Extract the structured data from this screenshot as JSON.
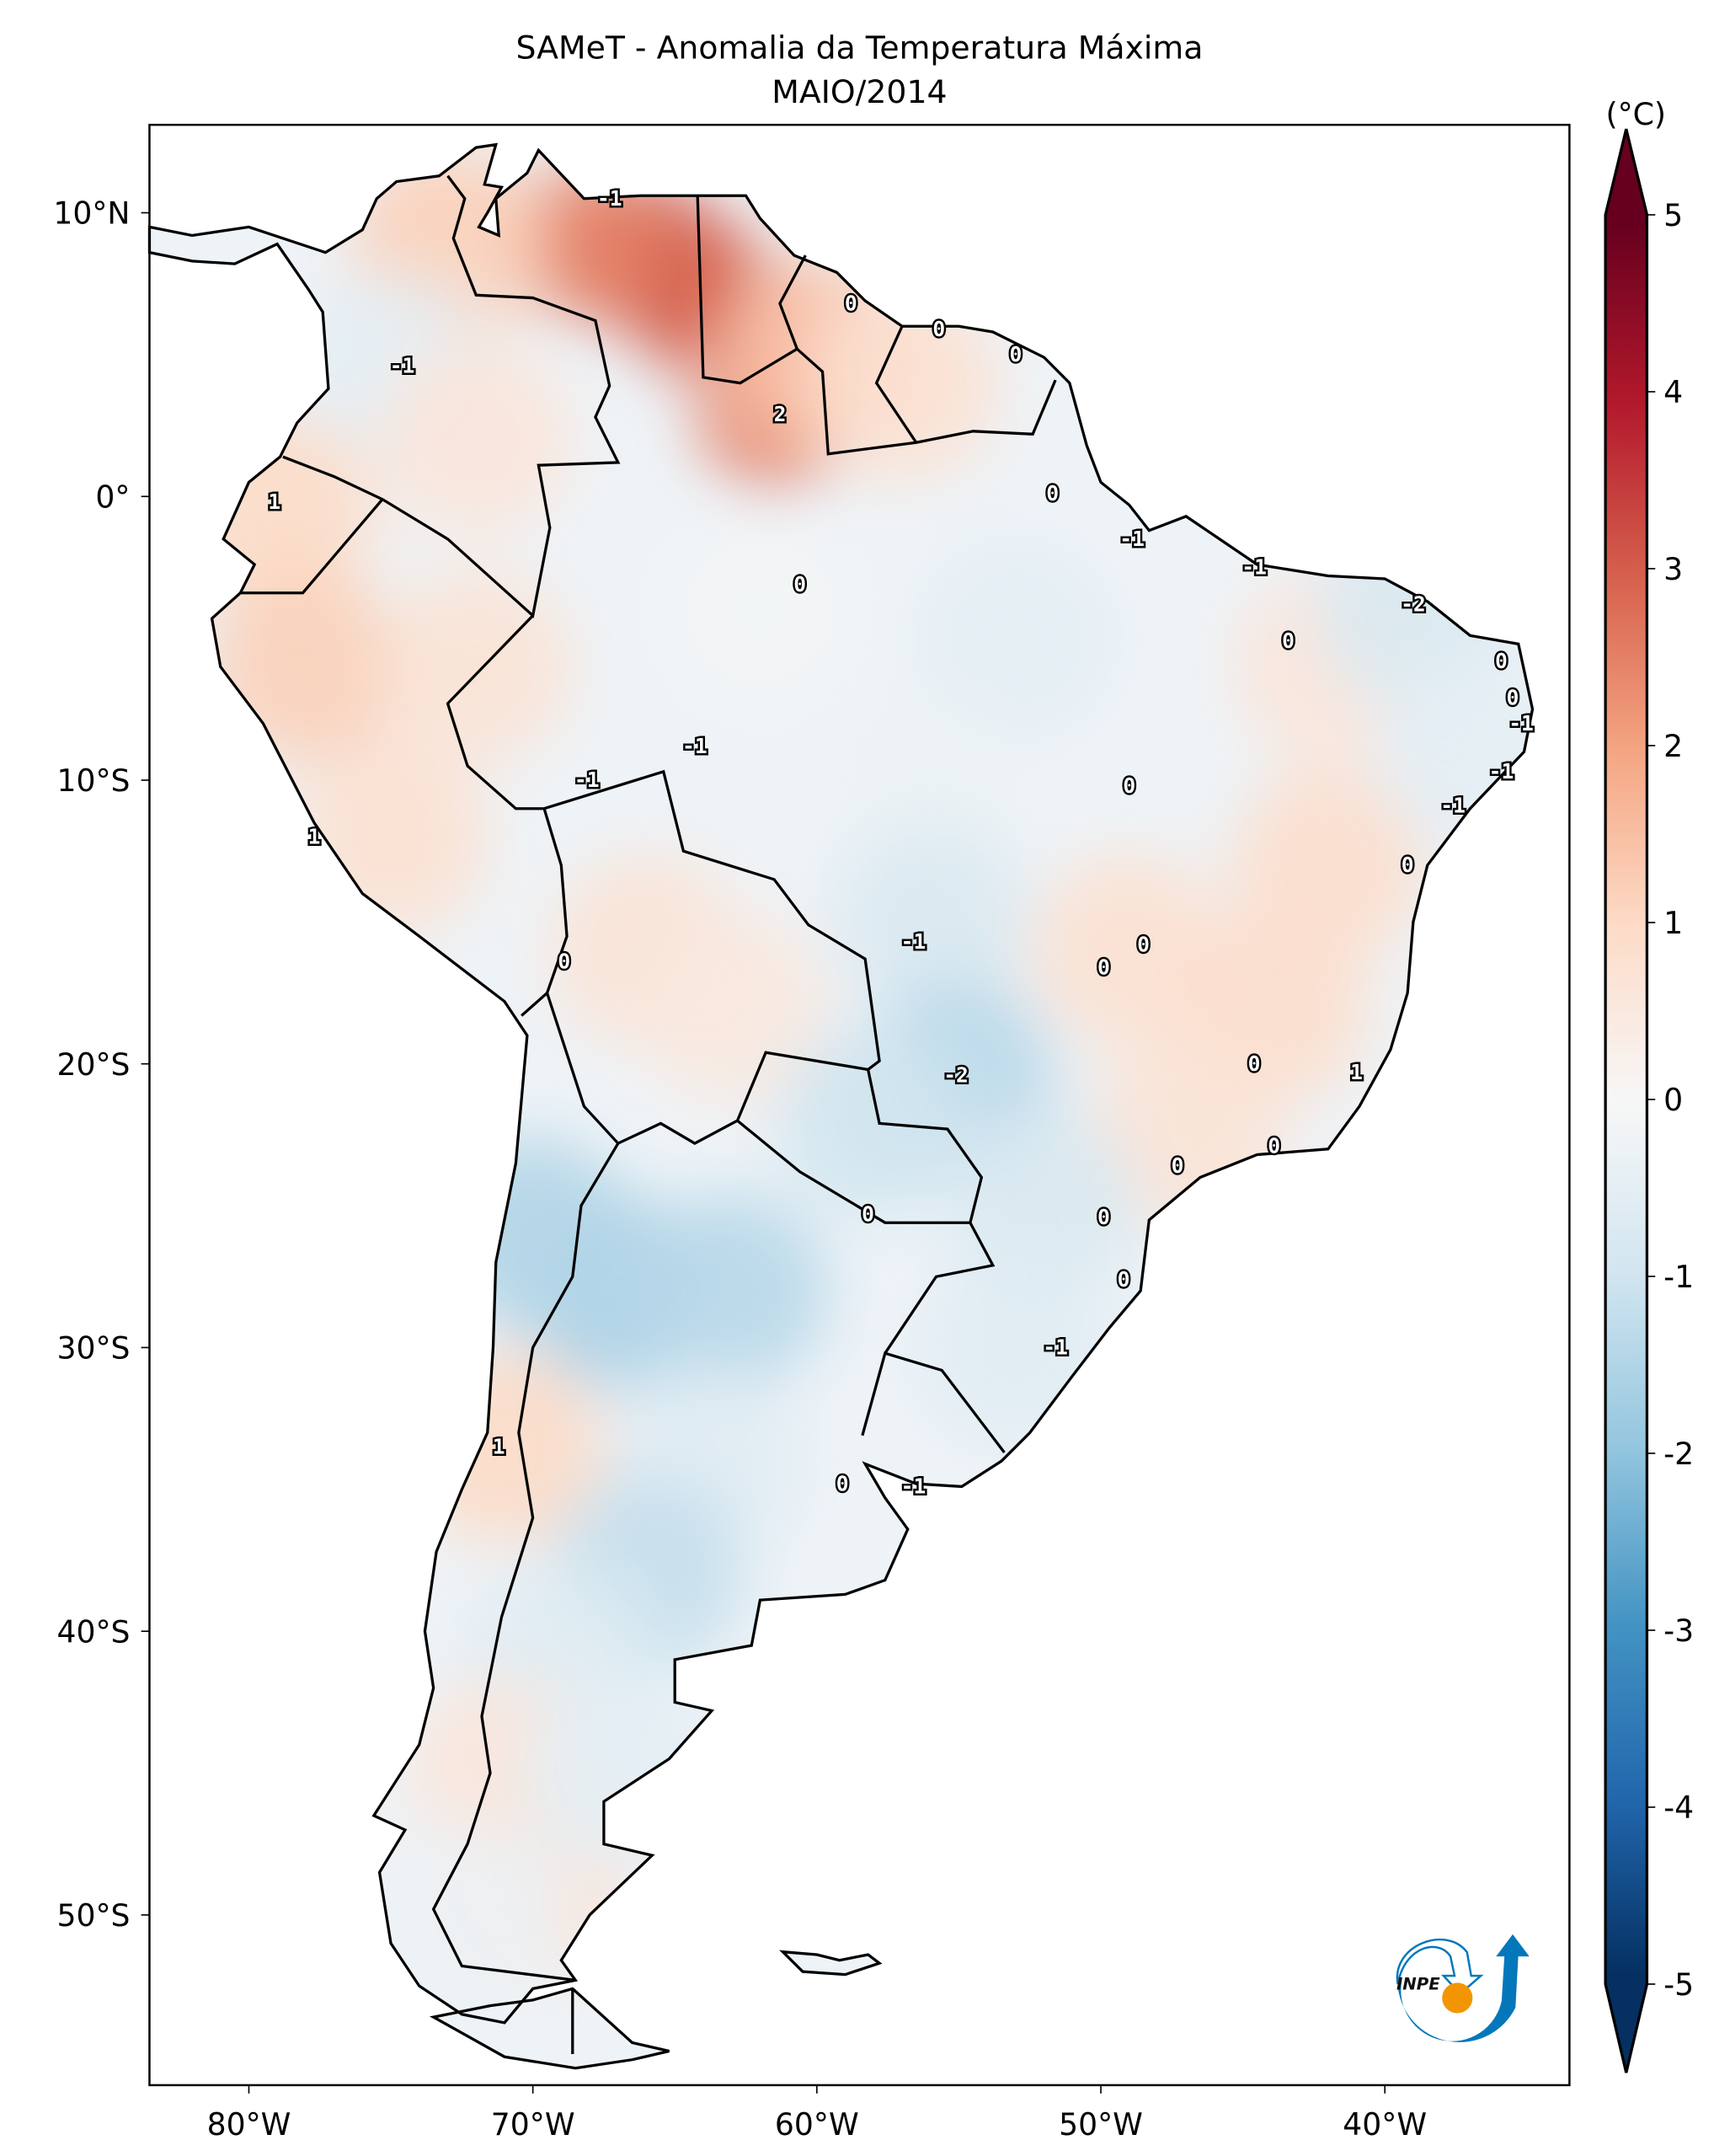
{
  "title": "SAMeT - Anomalia da Temperatura Máxima",
  "subtitle": "MAIO/2014",
  "colorbar": {
    "unit_label": "(°C)",
    "range": [
      -5,
      5
    ],
    "extend": "both",
    "ticks": [
      "5",
      "4",
      "3",
      "2",
      "1",
      "0",
      "-1",
      "-2",
      "-3",
      "-4",
      "-5"
    ],
    "tick_values": [
      5,
      4,
      3,
      2,
      1,
      0,
      -1,
      -2,
      -3,
      -4,
      -5
    ],
    "colors": [
      "#053061",
      "#2166ac",
      "#4393c3",
      "#92c5de",
      "#d1e5f0",
      "#f7f7f7",
      "#fddbc7",
      "#f4a582",
      "#d6604d",
      "#b2182b",
      "#67001f"
    ]
  },
  "axes": {
    "lon_range": [
      -83.5,
      -33.5
    ],
    "lat_range": [
      -56,
      13.1
    ],
    "lon_ticks": [
      {
        "v": -80,
        "label": "80°W"
      },
      {
        "v": -70,
        "label": "70°W"
      },
      {
        "v": -60,
        "label": "60°W"
      },
      {
        "v": -50,
        "label": "50°W"
      },
      {
        "v": -40,
        "label": "40°W"
      }
    ],
    "lat_ticks": [
      {
        "v": 10,
        "label": "10°N"
      },
      {
        "v": 0,
        "label": "0°"
      },
      {
        "v": -10,
        "label": "10°S"
      },
      {
        "v": -20,
        "label": "20°S"
      },
      {
        "v": -30,
        "label": "30°S"
      },
      {
        "v": -40,
        "label": "40°S"
      },
      {
        "v": -50,
        "label": "50°S"
      }
    ]
  },
  "logo": {
    "text": "INPE"
  },
  "chart_data": {
    "type": "heatmap",
    "variable": "Maximum temperature anomaly (°C)",
    "anomaly_field": [
      {
        "lon": -66,
        "lat": 8.5,
        "v": 3.2
      },
      {
        "lon": -64,
        "lat": 7,
        "v": 3.0
      },
      {
        "lon": -68,
        "lat": 9,
        "v": 2.5
      },
      {
        "lon": -61.5,
        "lat": 3,
        "v": 2.6
      },
      {
        "lon": -60,
        "lat": 5,
        "v": 1.5
      },
      {
        "lon": -57,
        "lat": 4,
        "v": 0.8
      },
      {
        "lon": -73,
        "lat": 9,
        "v": 1.2
      },
      {
        "lon": -75,
        "lat": 4.5,
        "v": -0.5
      },
      {
        "lon": -72,
        "lat": 2,
        "v": 0.6
      },
      {
        "lon": -79,
        "lat": -0.5,
        "v": 1.0
      },
      {
        "lon": -78,
        "lat": -6,
        "v": 1.2
      },
      {
        "lon": -75,
        "lat": -12,
        "v": 0.8
      },
      {
        "lon": -72,
        "lat": -6,
        "v": 0.7
      },
      {
        "lon": -66,
        "lat": -16,
        "v": 0.7
      },
      {
        "lon": -63,
        "lat": -18,
        "v": 0.5
      },
      {
        "lon": -62,
        "lat": -4,
        "v": -0.1
      },
      {
        "lon": -53,
        "lat": -5,
        "v": -0.5
      },
      {
        "lon": -56,
        "lat": -10,
        "v": -0.3
      },
      {
        "lon": -56,
        "lat": -15,
        "v": -0.8
      },
      {
        "lon": -55,
        "lat": -20.5,
        "v": -1.4
      },
      {
        "lon": -58,
        "lat": -22,
        "v": -1.0
      },
      {
        "lon": -49,
        "lat": -16,
        "v": 0.8
      },
      {
        "lon": -44,
        "lat": -18,
        "v": 0.9
      },
      {
        "lon": -42,
        "lat": -13,
        "v": 0.9
      },
      {
        "lon": -42,
        "lat": -6,
        "v": 0.6
      },
      {
        "lon": -39,
        "lat": -4,
        "v": -0.8
      },
      {
        "lon": -37,
        "lat": -9,
        "v": -0.5
      },
      {
        "lon": -47,
        "lat": -22.5,
        "v": 0.7
      },
      {
        "lon": -52,
        "lat": -25,
        "v": -0.8
      },
      {
        "lon": -53,
        "lat": -30,
        "v": -0.6
      },
      {
        "lon": -67,
        "lat": -28,
        "v": -1.6
      },
      {
        "lon": -63,
        "lat": -28,
        "v": -1.4
      },
      {
        "lon": -70,
        "lat": -26,
        "v": -1.5
      },
      {
        "lon": -71,
        "lat": -33.5,
        "v": 1.0
      },
      {
        "lon": -64,
        "lat": -34,
        "v": -0.6
      },
      {
        "lon": -66,
        "lat": -38,
        "v": -1.2
      },
      {
        "lon": -69,
        "lat": -41,
        "v": -0.6
      },
      {
        "lon": -71,
        "lat": -45,
        "v": 0.6
      },
      {
        "lon": -70,
        "lat": -49,
        "v": 0.8
      },
      {
        "lon": -67,
        "lat": -45,
        "v": -0.5
      },
      {
        "lon": -72,
        "lat": -50,
        "v": -0.3
      }
    ],
    "contour_labels": [
      {
        "lon": -67.3,
        "lat": 10.5,
        "text": "-1"
      },
      {
        "lon": -58.8,
        "lat": 6.8,
        "text": "0"
      },
      {
        "lon": -55.7,
        "lat": 5.9,
        "text": "0"
      },
      {
        "lon": -53.0,
        "lat": 5.0,
        "text": "0"
      },
      {
        "lon": -74.6,
        "lat": 4.6,
        "text": "-1"
      },
      {
        "lon": -61.3,
        "lat": 2.9,
        "text": "2"
      },
      {
        "lon": -79.1,
        "lat": -0.2,
        "text": "1"
      },
      {
        "lon": -51.7,
        "lat": 0.1,
        "text": "0"
      },
      {
        "lon": -48.9,
        "lat": -1.5,
        "text": "-1"
      },
      {
        "lon": -44.6,
        "lat": -2.5,
        "text": "-1"
      },
      {
        "lon": -39.0,
        "lat": -3.8,
        "text": "-2"
      },
      {
        "lon": -60.6,
        "lat": -3.1,
        "text": "0"
      },
      {
        "lon": -43.4,
        "lat": -5.1,
        "text": "0"
      },
      {
        "lon": -35.9,
        "lat": -5.8,
        "text": "0"
      },
      {
        "lon": -35.5,
        "lat": -7.1,
        "text": "0"
      },
      {
        "lon": -35.2,
        "lat": -8.0,
        "text": "-1"
      },
      {
        "lon": -64.3,
        "lat": -8.8,
        "text": "-1"
      },
      {
        "lon": -68.1,
        "lat": -10.0,
        "text": "-1"
      },
      {
        "lon": -35.9,
        "lat": -9.7,
        "text": "-1"
      },
      {
        "lon": -49.0,
        "lat": -10.2,
        "text": "0"
      },
      {
        "lon": -37.6,
        "lat": -10.9,
        "text": "-1"
      },
      {
        "lon": -77.7,
        "lat": -12.0,
        "text": "1"
      },
      {
        "lon": -39.2,
        "lat": -13.0,
        "text": "0"
      },
      {
        "lon": -56.6,
        "lat": -15.7,
        "text": "-1"
      },
      {
        "lon": -48.5,
        "lat": -15.8,
        "text": "0"
      },
      {
        "lon": -68.9,
        "lat": -16.4,
        "text": "0"
      },
      {
        "lon": -49.9,
        "lat": -16.6,
        "text": "0"
      },
      {
        "lon": -55.1,
        "lat": -20.4,
        "text": "-2"
      },
      {
        "lon": -44.6,
        "lat": -20.0,
        "text": "0"
      },
      {
        "lon": -41.0,
        "lat": -20.3,
        "text": "1"
      },
      {
        "lon": -43.9,
        "lat": -22.9,
        "text": "0"
      },
      {
        "lon": -47.3,
        "lat": -23.6,
        "text": "0"
      },
      {
        "lon": -58.2,
        "lat": -25.3,
        "text": "0"
      },
      {
        "lon": -49.9,
        "lat": -25.4,
        "text": "0"
      },
      {
        "lon": -49.2,
        "lat": -27.6,
        "text": "0"
      },
      {
        "lon": -51.6,
        "lat": -30.0,
        "text": "-1"
      },
      {
        "lon": -71.2,
        "lat": -33.5,
        "text": "1"
      },
      {
        "lon": -59.1,
        "lat": -34.8,
        "text": "0"
      },
      {
        "lon": -56.6,
        "lat": -34.9,
        "text": "-1"
      }
    ]
  }
}
